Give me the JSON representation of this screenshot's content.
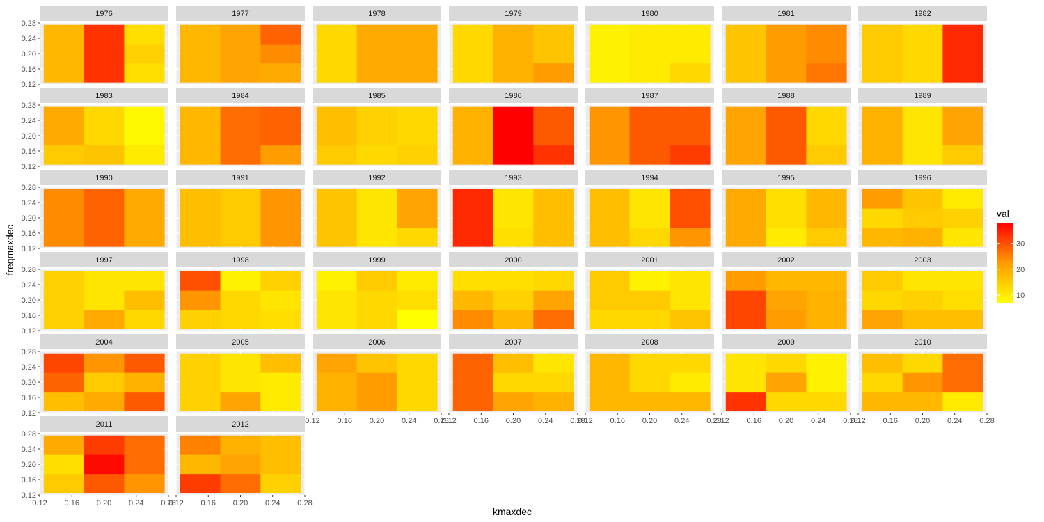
{
  "chart_data": {
    "type": "heatmap",
    "xlabel": "kmaxdec",
    "ylabel": "freqmaxdec",
    "x_ticks": [
      "0.12",
      "0.16",
      "0.20",
      "0.24",
      "0.28"
    ],
    "y_ticks": [
      "0.12",
      "0.16",
      "0.20",
      "0.24",
      "0.28"
    ],
    "xlim": [
      0.12,
      0.28
    ],
    "ylim": [
      0.12,
      0.28
    ],
    "x_bins": [
      0.15,
      0.2,
      0.25
    ],
    "y_bins": [
      0.15,
      0.2,
      0.25
    ],
    "legend": {
      "title": "val",
      "ticks": [
        10,
        20,
        30
      ],
      "range": [
        7,
        38
      ],
      "low_color": "#ffff00",
      "high_color": "#ff0000",
      "position": "right"
    },
    "grid": true,
    "ncol": 7,
    "panels": [
      {
        "label": "1976",
        "values": [
          [
            18,
            33,
            12
          ],
          [
            18,
            33,
            14
          ],
          [
            18,
            33,
            12
          ]
        ]
      },
      {
        "label": "1977",
        "values": [
          [
            18,
            21,
            20
          ],
          [
            18,
            21,
            24
          ],
          [
            18,
            21,
            28
          ]
        ]
      },
      {
        "label": "1978",
        "values": [
          [
            13,
            20,
            20
          ],
          [
            13,
            20,
            20
          ],
          [
            13,
            20,
            20
          ]
        ]
      },
      {
        "label": "1979",
        "values": [
          [
            13,
            19,
            22
          ],
          [
            13,
            19,
            16
          ],
          [
            13,
            19,
            16
          ]
        ]
      },
      {
        "label": "1980",
        "values": [
          [
            9,
            10,
            13
          ],
          [
            9,
            10,
            10
          ],
          [
            9,
            10,
            10
          ]
        ]
      },
      {
        "label": "1981",
        "values": [
          [
            16,
            22,
            26
          ],
          [
            16,
            22,
            24
          ],
          [
            16,
            22,
            24
          ]
        ]
      },
      {
        "label": "1982",
        "values": [
          [
            15,
            13,
            34
          ],
          [
            15,
            13,
            34
          ],
          [
            15,
            13,
            34
          ]
        ]
      },
      {
        "label": "1983",
        "values": [
          [
            15,
            16,
            10
          ],
          [
            20,
            13,
            8
          ],
          [
            20,
            13,
            8
          ]
        ]
      },
      {
        "label": "1984",
        "values": [
          [
            18,
            27,
            22
          ],
          [
            18,
            27,
            28
          ],
          [
            18,
            27,
            28
          ]
        ]
      },
      {
        "label": "1985",
        "values": [
          [
            15,
            13,
            14
          ],
          [
            17,
            14,
            13
          ],
          [
            17,
            14,
            13
          ]
        ]
      },
      {
        "label": "1986",
        "values": [
          [
            19,
            38,
            33
          ],
          [
            19,
            38,
            29
          ],
          [
            19,
            38,
            29
          ]
        ]
      },
      {
        "label": "1987",
        "values": [
          [
            23,
            29,
            32
          ],
          [
            23,
            29,
            29
          ],
          [
            23,
            29,
            29
          ]
        ]
      },
      {
        "label": "1988",
        "values": [
          [
            21,
            29,
            15
          ],
          [
            21,
            29,
            13
          ],
          [
            21,
            29,
            13
          ]
        ]
      },
      {
        "label": "1989",
        "values": [
          [
            19,
            11,
            15
          ],
          [
            19,
            11,
            21
          ],
          [
            19,
            11,
            21
          ]
        ]
      },
      {
        "label": "1990",
        "values": [
          [
            24,
            28,
            20
          ],
          [
            24,
            28,
            20
          ],
          [
            24,
            28,
            20
          ]
        ]
      },
      {
        "label": "1991",
        "values": [
          [
            17,
            15,
            23
          ],
          [
            17,
            15,
            23
          ],
          [
            17,
            15,
            23
          ]
        ]
      },
      {
        "label": "1992",
        "values": [
          [
            16,
            11,
            13
          ],
          [
            16,
            11,
            21
          ],
          [
            16,
            11,
            21
          ]
        ]
      },
      {
        "label": "1993",
        "values": [
          [
            34,
            12,
            17
          ],
          [
            34,
            11,
            17
          ],
          [
            34,
            11,
            17
          ]
        ]
      },
      {
        "label": "1994",
        "values": [
          [
            17,
            13,
            23
          ],
          [
            17,
            11,
            30
          ],
          [
            17,
            11,
            30
          ]
        ]
      },
      {
        "label": "1995",
        "values": [
          [
            20,
            10,
            15
          ],
          [
            20,
            12,
            18
          ],
          [
            20,
            12,
            18
          ]
        ]
      },
      {
        "label": "1996",
        "values": [
          [
            18,
            19,
            11
          ],
          [
            13,
            15,
            14
          ],
          [
            22,
            16,
            10
          ]
        ]
      },
      {
        "label": "1997",
        "values": [
          [
            14,
            20,
            13
          ],
          [
            14,
            11,
            17
          ],
          [
            14,
            11,
            11
          ]
        ]
      },
      {
        "label": "1998",
        "values": [
          [
            14,
            13,
            12
          ],
          [
            23,
            13,
            11
          ],
          [
            30,
            9,
            14
          ]
        ]
      },
      {
        "label": "1999",
        "values": [
          [
            11,
            13,
            7
          ],
          [
            11,
            13,
            12
          ],
          [
            9,
            15,
            10
          ]
        ]
      },
      {
        "label": "2000",
        "values": [
          [
            24,
            18,
            27
          ],
          [
            18,
            14,
            21
          ],
          [
            12,
            12,
            13
          ]
        ]
      },
      {
        "label": "2001",
        "values": [
          [
            13,
            13,
            16
          ],
          [
            15,
            15,
            11
          ],
          [
            15,
            9,
            11
          ]
        ]
      },
      {
        "label": "2002",
        "values": [
          [
            31,
            22,
            19
          ],
          [
            31,
            21,
            19
          ],
          [
            22,
            18,
            18
          ]
        ]
      },
      {
        "label": "2003",
        "values": [
          [
            21,
            17,
            17
          ],
          [
            13,
            14,
            12
          ],
          [
            15,
            11,
            11
          ]
        ]
      },
      {
        "label": "2004",
        "values": [
          [
            17,
            20,
            29
          ],
          [
            28,
            15,
            19
          ],
          [
            31,
            23,
            29
          ]
        ]
      },
      {
        "label": "2005",
        "values": [
          [
            14,
            21,
            10
          ],
          [
            14,
            11,
            10
          ],
          [
            14,
            11,
            17
          ]
        ]
      },
      {
        "label": "2006",
        "values": [
          [
            19,
            22,
            13
          ],
          [
            19,
            22,
            13
          ],
          [
            21,
            16,
            13
          ]
        ]
      },
      {
        "label": "2007",
        "values": [
          [
            28,
            21,
            19
          ],
          [
            28,
            13,
            13
          ],
          [
            28,
            17,
            11
          ]
        ]
      },
      {
        "label": "2008",
        "values": [
          [
            18,
            18,
            18
          ],
          [
            18,
            13,
            10
          ],
          [
            18,
            13,
            13
          ]
        ]
      },
      {
        "label": "2009",
        "values": [
          [
            33,
            13,
            13
          ],
          [
            11,
            21,
            9
          ],
          [
            11,
            13,
            9
          ]
        ]
      },
      {
        "label": "2010",
        "values": [
          [
            18,
            18,
            10
          ],
          [
            13,
            23,
            27
          ],
          [
            17,
            13,
            27
          ]
        ]
      },
      {
        "label": "2011",
        "values": [
          [
            15,
            29,
            23
          ],
          [
            12,
            37,
            27
          ],
          [
            20,
            32,
            27
          ]
        ]
      },
      {
        "label": "2012",
        "values": [
          [
            32,
            27,
            14
          ],
          [
            18,
            21,
            17
          ],
          [
            25,
            19,
            17
          ]
        ]
      }
    ]
  }
}
